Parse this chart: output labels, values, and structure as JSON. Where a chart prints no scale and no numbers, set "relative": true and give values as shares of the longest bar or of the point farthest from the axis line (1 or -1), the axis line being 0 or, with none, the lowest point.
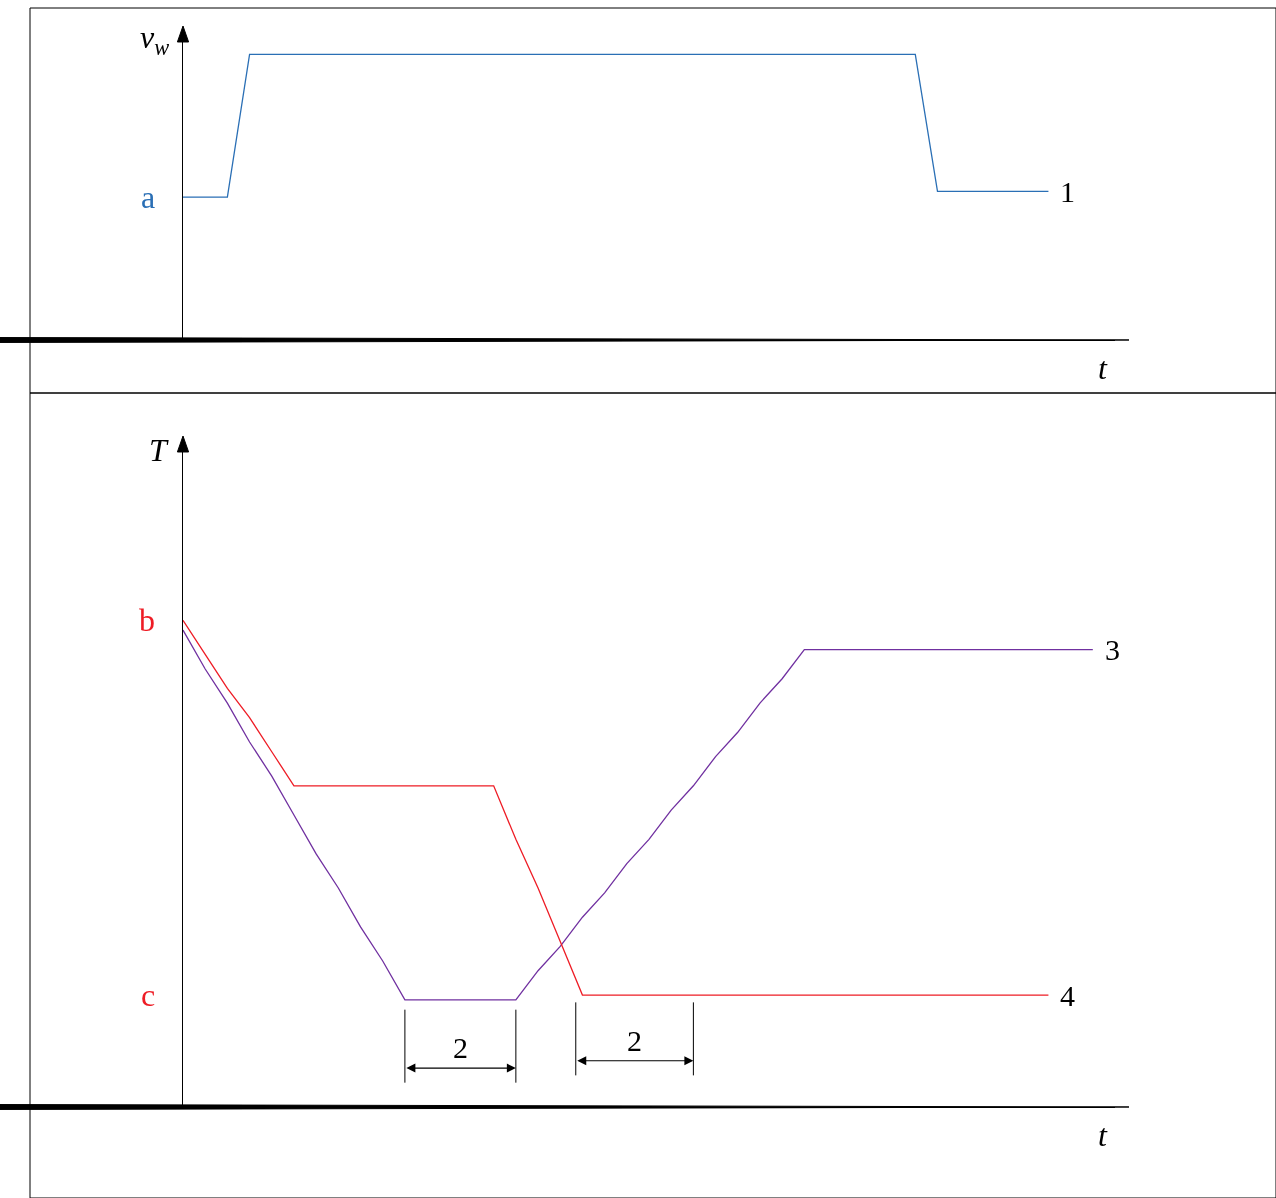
{
  "chart_data": [
    {
      "type": "line",
      "relative": true,
      "ylabel": "v$_{w}$",
      "xlabel": "t",
      "categories": [
        null,
        null,
        null,
        null,
        null,
        null,
        null,
        null,
        null,
        null,
        null,
        null,
        null,
        null,
        null,
        null,
        null,
        null,
        null,
        null,
        null,
        null,
        null,
        null,
        null,
        null,
        null,
        null,
        null,
        null,
        null,
        null,
        null,
        null,
        null,
        null,
        null,
        null,
        null,
        null,
        null,
        null,
        null
      ],
      "series": [
        {
          "name": "1",
          "color": "#2a6fb5",
          "values": [
            0.5,
            0.5,
            0.5,
            1,
            1,
            1,
            1,
            1,
            1,
            1,
            1,
            1,
            1,
            1,
            1,
            1,
            1,
            1,
            1,
            1,
            1,
            1,
            1,
            1,
            1,
            1,
            1,
            1,
            1,
            1,
            1,
            1,
            1,
            1,
            0.52,
            0.52,
            0.52,
            0.52,
            0.52,
            0.52,
            null,
            null,
            null
          ]
        }
      ],
      "annotations": [
        "a"
      ]
    },
    {
      "type": "line",
      "relative": true,
      "ylabel": "T",
      "xlabel": "t",
      "categories": [
        null,
        null,
        null,
        null,
        null,
        null,
        null,
        null,
        null,
        null,
        null,
        null,
        null,
        null,
        null,
        null,
        null,
        null,
        null,
        null,
        null,
        null,
        null,
        null,
        null,
        null,
        null,
        null,
        null,
        null,
        null,
        null,
        null,
        null,
        null,
        null,
        null,
        null,
        null,
        null,
        null,
        null,
        null
      ],
      "series": [
        {
          "name": "3",
          "color": "#7030a0",
          "values": [
            0.98,
            0.9,
            0.83,
            0.75,
            0.68,
            0.6,
            0.52,
            0.45,
            0.37,
            0.3,
            0.22,
            0.22,
            0.22,
            0.22,
            0.22,
            0.22,
            0.28,
            0.33,
            0.39,
            0.44,
            0.5,
            0.55,
            0.61,
            0.66,
            0.72,
            0.77,
            0.83,
            0.88,
            0.94,
            0.94,
            0.94,
            0.94,
            0.94,
            0.94,
            0.94,
            0.94,
            0.94,
            0.94,
            0.94,
            0.94,
            0.94,
            0.94,
            null
          ]
        },
        {
          "name": "4",
          "color": "#ee1c25",
          "values": [
            1,
            0.93,
            0.86,
            0.8,
            0.73,
            0.66,
            0.66,
            0.66,
            0.66,
            0.66,
            0.66,
            0.66,
            0.66,
            0.66,
            0.66,
            0.55,
            0.45,
            0.34,
            0.23,
            0.23,
            0.23,
            0.23,
            0.23,
            0.23,
            0.23,
            0.23,
            0.23,
            0.23,
            0.23,
            0.23,
            0.23,
            0.23,
            0.23,
            0.23,
            0.23,
            0.23,
            0.23,
            0.23,
            0.23,
            0.23,
            null,
            null,
            null
          ]
        }
      ],
      "annotations": [
        "b",
        "c",
        "2",
        "2"
      ]
    }
  ]
}
